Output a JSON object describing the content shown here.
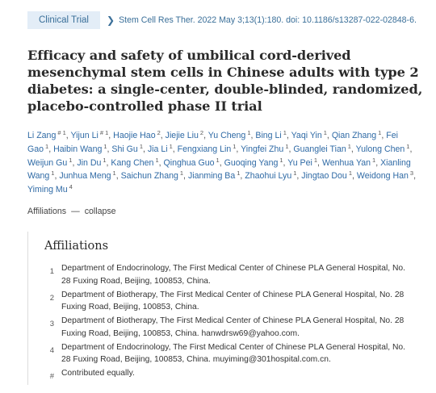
{
  "header": {
    "badge": "Clinical Trial",
    "citation": "Stem Cell Res Ther. 2022 May 3;13(1):180. doi: 10.1186/s13287-022-02848-6."
  },
  "title": "Efficacy and safety of umbilical cord-derived mesenchymal stem cells in Chinese adults with type 2 diabetes: a single-center, double-blinded, randomized, placebo-controlled phase II trial",
  "authors": [
    {
      "name": "Li Zang",
      "sup": "# 1"
    },
    {
      "name": "Yijun Li",
      "sup": "# 1"
    },
    {
      "name": "Haojie Hao",
      "sup": "2"
    },
    {
      "name": "Jiejie Liu",
      "sup": "2"
    },
    {
      "name": "Yu Cheng",
      "sup": "1"
    },
    {
      "name": "Bing Li",
      "sup": "1"
    },
    {
      "name": "Yaqi Yin",
      "sup": "1"
    },
    {
      "name": "Qian Zhang",
      "sup": "1"
    },
    {
      "name": "Fei Gao",
      "sup": "1"
    },
    {
      "name": "Haibin Wang",
      "sup": "1"
    },
    {
      "name": "Shi Gu",
      "sup": "1"
    },
    {
      "name": "Jia Li",
      "sup": "1"
    },
    {
      "name": "Fengxiang Lin",
      "sup": "1"
    },
    {
      "name": "Yingfei Zhu",
      "sup": "1"
    },
    {
      "name": "Guanglei Tian",
      "sup": "1"
    },
    {
      "name": "Yulong Chen",
      "sup": "1"
    },
    {
      "name": "Weijun Gu",
      "sup": "1"
    },
    {
      "name": "Jin Du",
      "sup": "1"
    },
    {
      "name": "Kang Chen",
      "sup": "1"
    },
    {
      "name": "Qinghua Guo",
      "sup": "1"
    },
    {
      "name": "Guoqing Yang",
      "sup": "1"
    },
    {
      "name": "Yu Pei",
      "sup": "1"
    },
    {
      "name": "Wenhua Yan",
      "sup": "1"
    },
    {
      "name": "Xianling Wang",
      "sup": "1"
    },
    {
      "name": "Junhua Meng",
      "sup": "1"
    },
    {
      "name": "Saichun Zhang",
      "sup": "1"
    },
    {
      "name": "Jianming Ba",
      "sup": "1"
    },
    {
      "name": "Zhaohui Lyu",
      "sup": "1"
    },
    {
      "name": "Jingtao Dou",
      "sup": "1"
    },
    {
      "name": "Weidong Han",
      "sup": "3"
    },
    {
      "name": "Yiming Mu",
      "sup": "4"
    }
  ],
  "affiliations_toggle": {
    "label": "Affiliations",
    "dash": "—",
    "action": "collapse"
  },
  "affiliations": {
    "heading": "Affiliations",
    "items": [
      {
        "num": "1",
        "text": "Department of Endocrinology, The First Medical Center of Chinese PLA General Hospital, No. 28 Fuxing Road, Beijing, 100853, China."
      },
      {
        "num": "2",
        "text": "Department of Biotherapy, The First Medical Center of Chinese PLA General Hospital, No. 28 Fuxing Road, Beijing, 100853, China."
      },
      {
        "num": "3",
        "text": "Department of Biotherapy, The First Medical Center of Chinese PLA General Hospital, No. 28 Fuxing Road, Beijing, 100853, China. hanwdrsw69@yahoo.com."
      },
      {
        "num": "4",
        "text": "Department of Endocrinology, The First Medical Center of Chinese PLA General Hospital, No. 28 Fuxing Road, Beijing, 100853, China. muyiming@301hospital.com.cn."
      },
      {
        "num": "#",
        "text": "Contributed equally."
      }
    ]
  }
}
